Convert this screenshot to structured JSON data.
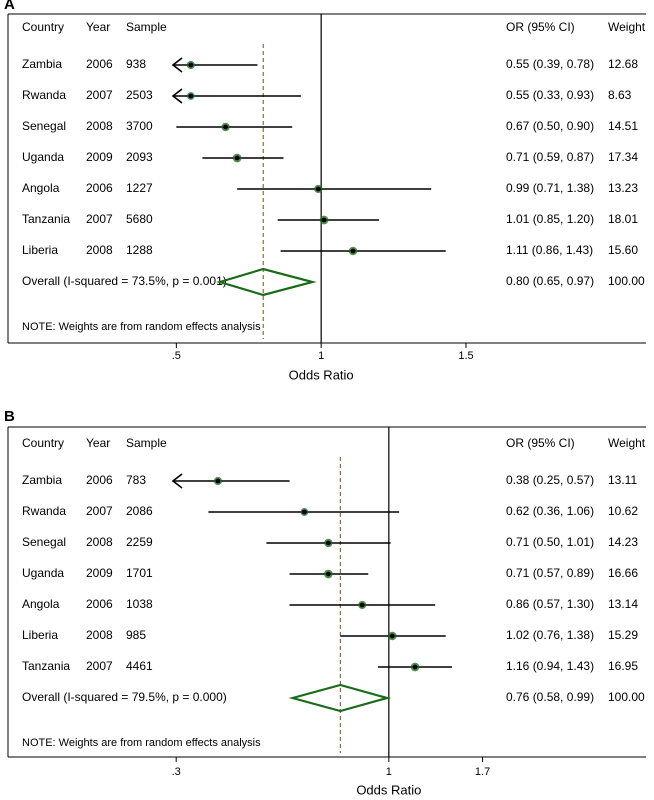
{
  "chart_data": [
    {
      "type": "forest",
      "panel_label": "A",
      "columns": {
        "country": "Country",
        "year": "Year",
        "sample": "Sample",
        "or_ci": "OR (95% CI)",
        "weight": "Weight"
      },
      "rows": [
        {
          "country": "Zambia",
          "year": "2006",
          "sample": "938",
          "or": 0.55,
          "lo": 0.39,
          "hi": 0.78,
          "or_text": "0.55 (0.39, 0.78)",
          "weight": "12.68",
          "weight_value": 12.68,
          "arrow_left": true
        },
        {
          "country": "Rwanda",
          "year": "2007",
          "sample": "2503",
          "or": 0.55,
          "lo": 0.33,
          "hi": 0.93,
          "or_text": "0.55 (0.33, 0.93)",
          "weight": "8.63",
          "weight_value": 8.63,
          "arrow_left": true
        },
        {
          "country": "Senegal",
          "year": "2008",
          "sample": "3700",
          "or": 0.67,
          "lo": 0.5,
          "hi": 0.9,
          "or_text": "0.67 (0.50, 0.90)",
          "weight": "14.51",
          "weight_value": 14.51,
          "arrow_left": false
        },
        {
          "country": "Uganda",
          "year": "2009",
          "sample": "2093",
          "or": 0.71,
          "lo": 0.59,
          "hi": 0.87,
          "or_text": "0.71 (0.59, 0.87)",
          "weight": "17.34",
          "weight_value": 17.34,
          "arrow_left": false
        },
        {
          "country": "Angola",
          "year": "2006",
          "sample": "1227",
          "or": 0.99,
          "lo": 0.71,
          "hi": 1.38,
          "or_text": "0.99 (0.71, 1.38)",
          "weight": "13.23",
          "weight_value": 13.23,
          "arrow_left": false
        },
        {
          "country": "Tanzania",
          "year": "2007",
          "sample": "5680",
          "or": 1.01,
          "lo": 0.85,
          "hi": 1.2,
          "or_text": "1.01 (0.85, 1.20)",
          "weight": "18.01",
          "weight_value": 18.01,
          "arrow_left": false
        },
        {
          "country": "Liberia",
          "year": "2008",
          "sample": "1288",
          "or": 1.11,
          "lo": 0.86,
          "hi": 1.43,
          "or_text": "1.11 (0.86, 1.43)",
          "weight": "15.60",
          "weight_value": 15.6,
          "arrow_left": false
        }
      ],
      "overall": {
        "label": "Overall  (I-squared = 73.5%, p = 0.001)",
        "or": 0.8,
        "lo": 0.65,
        "hi": 0.97,
        "or_text": "0.80 (0.65, 0.97)",
        "weight": "100.00"
      },
      "note": "NOTE: Weights are from random effects analysis",
      "xlabel": "Odds Ratio",
      "xticks": [
        {
          "value": 0.5,
          "label": ".5"
        },
        {
          "value": 1,
          "label": "1"
        },
        {
          "value": 1.5,
          "label": "1.5"
        }
      ],
      "xrange": [
        0.485,
        1.98
      ],
      "log_scale": false,
      "reference_line": 1,
      "colors": {
        "marker": "#1a6b1a",
        "diamond": "#1a6b1a",
        "overall_line": "#8b6b3a",
        "text": "#000000"
      }
    },
    {
      "type": "forest",
      "panel_label": "B",
      "columns": {
        "country": "Country",
        "year": "Year",
        "sample": "Sample",
        "or_ci": "OR (95% CI)",
        "weight": "Weight"
      },
      "rows": [
        {
          "country": "Zambia",
          "year": "2006",
          "sample": "783",
          "or": 0.38,
          "lo": 0.25,
          "hi": 0.57,
          "or_text": "0.38 (0.25, 0.57)",
          "weight": "13.11",
          "weight_value": 13.11,
          "arrow_left": true
        },
        {
          "country": "Rwanda",
          "year": "2007",
          "sample": "2086",
          "or": 0.62,
          "lo": 0.36,
          "hi": 1.06,
          "or_text": "0.62 (0.36, 1.06)",
          "weight": "10.62",
          "weight_value": 10.62,
          "arrow_left": false
        },
        {
          "country": "Senegal",
          "year": "2008",
          "sample": "2259",
          "or": 0.71,
          "lo": 0.5,
          "hi": 1.01,
          "or_text": "0.71 (0.50, 1.01)",
          "weight": "14.23",
          "weight_value": 14.23,
          "arrow_left": false
        },
        {
          "country": "Uganda",
          "year": "2009",
          "sample": "1701",
          "or": 0.71,
          "lo": 0.57,
          "hi": 0.89,
          "or_text": "0.71 (0.57, 0.89)",
          "weight": "16.66",
          "weight_value": 16.66,
          "arrow_left": false
        },
        {
          "country": "Angola",
          "year": "2006",
          "sample": "1038",
          "or": 0.86,
          "lo": 0.57,
          "hi": 1.3,
          "or_text": "0.86 (0.57, 1.30)",
          "weight": "13.14",
          "weight_value": 13.14,
          "arrow_left": false
        },
        {
          "country": "Liberia",
          "year": "2008",
          "sample": "985",
          "or": 1.02,
          "lo": 0.76,
          "hi": 1.38,
          "or_text": "1.02 (0.76, 1.38)",
          "weight": "15.29",
          "weight_value": 15.29,
          "arrow_left": false
        },
        {
          "country": "Tanzania",
          "year": "2007",
          "sample": "4461",
          "or": 1.16,
          "lo": 0.94,
          "hi": 1.43,
          "or_text": "1.16 (0.94, 1.43)",
          "weight": "16.95",
          "weight_value": 16.95,
          "arrow_left": false
        }
      ],
      "overall": {
        "label": "Overall  (I-squared = 79.5%, p = 0.000)",
        "or": 0.76,
        "lo": 0.58,
        "hi": 0.99,
        "or_text": "0.76 (0.58, 0.99)",
        "weight": "100.00"
      },
      "note": "NOTE: Weights are from random effects analysis",
      "xlabel": "Odds Ratio",
      "xticks": [
        {
          "value": 0.3,
          "label": ".3"
        },
        {
          "value": 1,
          "label": "1"
        },
        {
          "value": 1.7,
          "label": "1.7"
        }
      ],
      "xrange": [
        0.293,
        3.4
      ],
      "log_scale": true,
      "reference_line": 1,
      "colors": {
        "marker": "#1a6b1a",
        "diamond": "#1a6b1a",
        "overall_line": "#8b6b3a",
        "text": "#000000"
      }
    }
  ]
}
